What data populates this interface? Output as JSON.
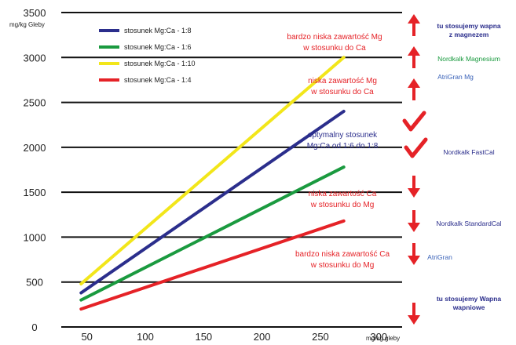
{
  "chart_data": {
    "type": "line",
    "x_unit_label": "mg/kg gleby",
    "y_unit_label": "mg/kg Gleby",
    "xlim": [
      28,
      320
    ],
    "ylim": [
      0,
      3500
    ],
    "x_ticks": [
      50,
      100,
      150,
      200,
      250,
      300
    ],
    "y_ticks": [
      0,
      500,
      1000,
      1500,
      2000,
      2500,
      3000,
      3500
    ],
    "grid": "horizontal",
    "legend": "top-left",
    "series": [
      {
        "name": "stosunek Mg:Ca - 1:8",
        "color": "#2b2e8c",
        "points": [
          [
            45,
            380
          ],
          [
            270,
            2400
          ]
        ]
      },
      {
        "name": "stosunek Mg:Ca - 1:6",
        "color": "#1a9a3f",
        "points": [
          [
            45,
            300
          ],
          [
            270,
            1780
          ]
        ]
      },
      {
        "name": "stosunek Mg:Ca - 1:10",
        "color": "#f2e61a",
        "points": [
          [
            45,
            480
          ],
          [
            270,
            3000
          ]
        ]
      },
      {
        "name": "stosunek Mg:Ca - 1:4",
        "color": "#e52227",
        "points": [
          [
            45,
            200
          ],
          [
            270,
            1180
          ]
        ]
      }
    ],
    "annotations": [
      {
        "lines": [
          "bardzo niska zawartość Mg",
          "w stosunku do Ca"
        ],
        "color": "#e52227"
      },
      {
        "lines": [
          "niska zawartość Mg",
          "w stosunku do Ca"
        ],
        "color": "#e52227"
      },
      {
        "lines": [
          "optymalny stosunek",
          "Mg:Ca od 1:6 do 1:8"
        ],
        "color": "#2b2e8c"
      },
      {
        "lines": [
          "niska zawartość Ca",
          "w stosunku do Mg"
        ],
        "color": "#e52227"
      },
      {
        "lines": [
          "bardzo niska zawartość Ca",
          "w stosunku do Mg"
        ],
        "color": "#e52227"
      }
    ],
    "side_labels": [
      {
        "lines": [
          "tu stosujemy wapna",
          "z magnezem"
        ],
        "color": "#2b2e8c",
        "bold": true
      },
      {
        "lines": [
          "Nordkalk Magnesium"
        ],
        "color": "#1a9a3f",
        "bold": false
      },
      {
        "lines": [
          "AtriGran Mg"
        ],
        "color": "#3a62b8",
        "bold": false
      },
      {
        "lines": [
          "Nordkalk FastCal"
        ],
        "color": "#2b2e8c",
        "bold": false
      },
      {
        "lines": [
          "Nordkalk StandardCal"
        ],
        "color": "#2b2e8c",
        "bold": false
      },
      {
        "lines": [
          "AtriGran"
        ],
        "color": "#3a62b8",
        "bold": false
      },
      {
        "lines": [
          "tu stosujemy Wapna",
          "wapniowe"
        ],
        "color": "#2b2e8c",
        "bold": true
      }
    ],
    "markers": {
      "arrow_color": "#e52227",
      "check_color": "#e52227",
      "up_arrows": 3,
      "checks": 2,
      "down_arrows": 4
    }
  }
}
